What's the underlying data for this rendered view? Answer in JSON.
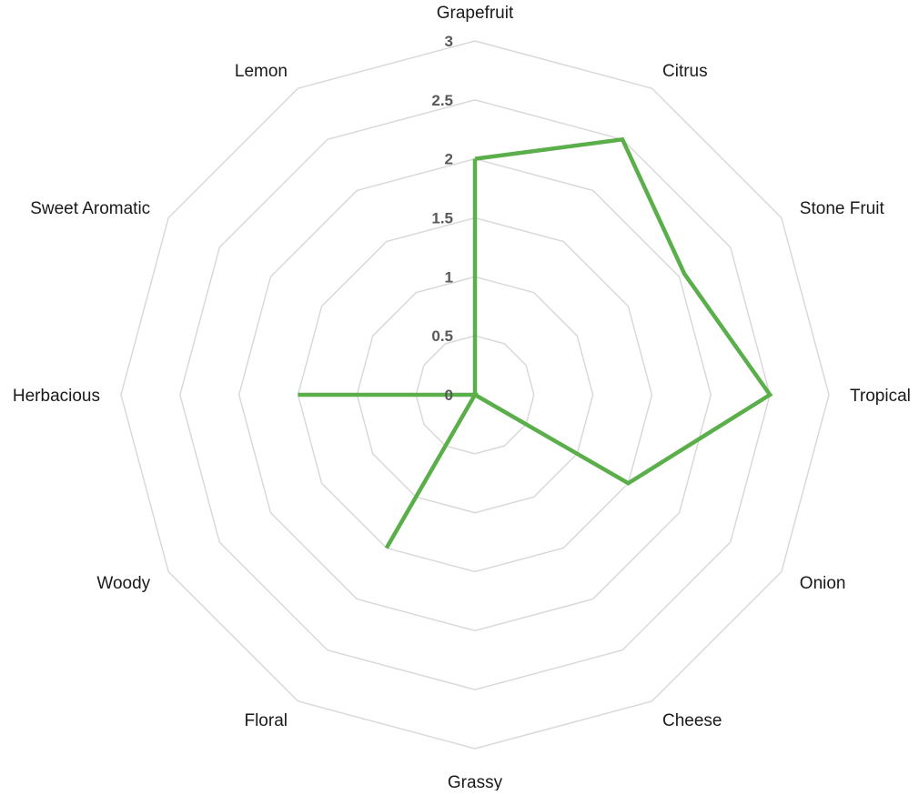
{
  "chart_data": {
    "type": "radar",
    "title": "",
    "categories": [
      "Grapefruit",
      "Citrus",
      "Stone Fruit",
      "Tropical",
      "Onion",
      "Cheese",
      "Grassy",
      "Floral",
      "Woody",
      "Herbacious",
      "Sweet Aromatic",
      "Lemon"
    ],
    "ticks": [
      "0",
      "0.5",
      "1",
      "1.5",
      "2",
      "2.5",
      "3"
    ],
    "rlim": [
      0,
      3
    ],
    "grid": true,
    "legend": "none",
    "series": [
      {
        "color": "#5aaf4b",
        "values": [
          2,
          2.5,
          2.05,
          2.5,
          1.5,
          0,
          0,
          1.5,
          0,
          1.5,
          0,
          0
        ]
      }
    ]
  },
  "colors": {
    "grid": "#d9d9d9",
    "tick_text": "#595959",
    "label_text": "#1a1a1a"
  }
}
